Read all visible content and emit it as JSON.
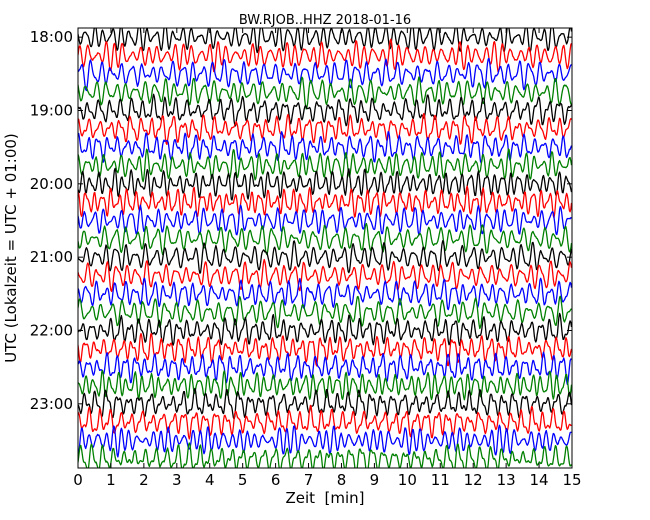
{
  "chart_data": {
    "type": "line",
    "title": "BW.RJOB..HHZ 2018-01-16",
    "xlabel": "Zeit  [min]",
    "ylabel": "UTC (Lokalzeit = UTC + 01:00)",
    "xlim": [
      0,
      15
    ],
    "x_ticks": [
      "0",
      "1",
      "2",
      "3",
      "4",
      "5",
      "6",
      "7",
      "8",
      "9",
      "10",
      "11",
      "12",
      "13",
      "14",
      "15"
    ],
    "y_ticks": [
      "18:00",
      "19:00",
      "20:00",
      "21:00",
      "22:00",
      "23:00"
    ],
    "trace_start": "18:00",
    "trace_interval_minutes": 15,
    "trace_count": 24,
    "series_colors": [
      "#000000",
      "#ff0000",
      "#0000ff",
      "#008000"
    ],
    "grid": false,
    "legend": "none"
  }
}
